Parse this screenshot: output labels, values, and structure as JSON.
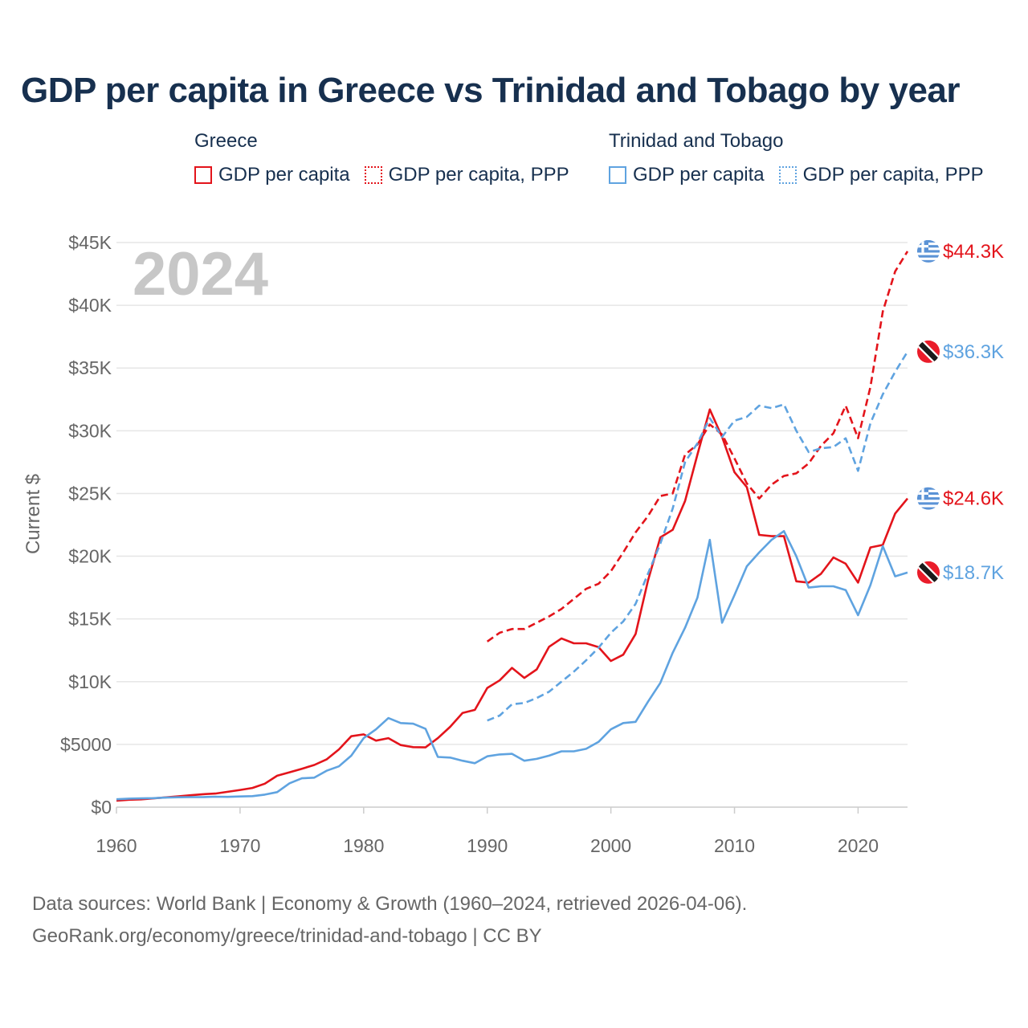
{
  "title": "GDP per capita in Greece vs Trinidad and Tobago by year",
  "legend": {
    "greece": {
      "country": "Greece",
      "nominal": "GDP per capita",
      "ppp": "GDP per capita, PPP"
    },
    "tt": {
      "country": "Trinidad and Tobago",
      "nominal": "GDP per capita",
      "ppp": "GDP per capita, PPP"
    }
  },
  "year_badge": "2024",
  "footer": {
    "line1": "Data sources: World Bank | Economy & Growth (1960–2024, retrieved 2026-04-06).",
    "line2": "GeoRank.org/economy/greece/trinidad-and-tobago | CC BY"
  },
  "colors": {
    "greece": "#e3141b",
    "tt": "#5fa3e0",
    "grid": "#e6e6e6",
    "axis": "#cccccc"
  },
  "chart_data": {
    "type": "line",
    "title": "GDP per capita in Greece vs Trinidad and Tobago by year",
    "xlabel": "",
    "ylabel": "Current $",
    "xlim": [
      1960,
      2024
    ],
    "ylim": [
      0,
      45000
    ],
    "x_ticks": [
      1960,
      1970,
      1980,
      1990,
      2000,
      2010,
      2020
    ],
    "x_tick_labels": [
      "1960",
      "1970",
      "1980",
      "1990",
      "2000",
      "2010",
      "2020"
    ],
    "y_ticks": [
      0,
      5000,
      10000,
      15000,
      20000,
      25000,
      30000,
      35000,
      40000,
      45000
    ],
    "y_tick_labels": [
      "$0",
      "$5000",
      "$10K",
      "$15K",
      "$20K",
      "$25K",
      "$30K",
      "$35K",
      "$40K",
      "$45K"
    ],
    "series": [
      {
        "name": "Greece GDP per capita",
        "country": "greece",
        "dash": false,
        "end_label": "$24.6K",
        "x": [
          1960,
          1961,
          1962,
          1963,
          1964,
          1965,
          1966,
          1967,
          1968,
          1969,
          1970,
          1971,
          1972,
          1973,
          1974,
          1975,
          1976,
          1977,
          1978,
          1979,
          1980,
          1981,
          1982,
          1983,
          1984,
          1985,
          1986,
          1987,
          1988,
          1989,
          1990,
          1991,
          1992,
          1993,
          1994,
          1995,
          1996,
          1997,
          1998,
          1999,
          2000,
          2001,
          2002,
          2003,
          2004,
          2005,
          2006,
          2007,
          2008,
          2009,
          2010,
          2011,
          2012,
          2013,
          2014,
          2015,
          2016,
          2017,
          2018,
          2019,
          2020,
          2021,
          2022,
          2023,
          2024
        ],
        "values": [
          520,
          590,
          620,
          700,
          780,
          860,
          950,
          1030,
          1080,
          1220,
          1370,
          1530,
          1870,
          2500,
          2780,
          3060,
          3360,
          3800,
          4600,
          5650,
          5800,
          5300,
          5500,
          4950,
          4780,
          4760,
          5500,
          6400,
          7500,
          7750,
          9500,
          10100,
          11100,
          10300,
          10980,
          12780,
          13450,
          13060,
          13060,
          12760,
          11650,
          12150,
          13800,
          18050,
          21500,
          22100,
          24400,
          28100,
          31700,
          29500,
          26700,
          25500,
          21700,
          21600,
          21600,
          18000,
          17900,
          18600,
          19900,
          19400,
          17900,
          20700,
          20900,
          23400,
          24600
        ]
      },
      {
        "name": "Greece GDP per capita, PPP",
        "country": "greece",
        "dash": true,
        "end_label": "$44.3K",
        "x": [
          1990,
          1991,
          1992,
          1993,
          1994,
          1995,
          1996,
          1997,
          1998,
          1999,
          2000,
          2001,
          2002,
          2003,
          2004,
          2005,
          2006,
          2007,
          2008,
          2009,
          2010,
          2011,
          2012,
          2013,
          2014,
          2015,
          2016,
          2017,
          2018,
          2019,
          2020,
          2021,
          2022,
          2023,
          2024
        ],
        "values": [
          13200,
          13900,
          14200,
          14200,
          14700,
          15200,
          15800,
          16600,
          17400,
          17800,
          18800,
          20300,
          21900,
          23200,
          24800,
          25000,
          28100,
          28900,
          30500,
          29700,
          27800,
          25800,
          24600,
          25700,
          26400,
          26600,
          27400,
          28800,
          29800,
          32000,
          29400,
          33500,
          39500,
          42700,
          44300
        ]
      },
      {
        "name": "Trinidad and Tobago GDP per capita",
        "country": "tt",
        "dash": false,
        "end_label": "$18.7K",
        "x": [
          1960,
          1961,
          1962,
          1963,
          1964,
          1965,
          1966,
          1967,
          1968,
          1969,
          1970,
          1971,
          1972,
          1973,
          1974,
          1975,
          1976,
          1977,
          1978,
          1979,
          1980,
          1981,
          1982,
          1983,
          1984,
          1985,
          1986,
          1987,
          1988,
          1989,
          1990,
          1991,
          1992,
          1993,
          1994,
          1995,
          1996,
          1997,
          1998,
          1999,
          2000,
          2001,
          2002,
          2003,
          2004,
          2005,
          2006,
          2007,
          2008,
          2009,
          2010,
          2011,
          2012,
          2013,
          2014,
          2015,
          2016,
          2017,
          2018,
          2019,
          2020,
          2021,
          2022,
          2023,
          2024
        ],
        "values": [
          630,
          680,
          700,
          720,
          760,
          790,
          800,
          800,
          830,
          820,
          850,
          880,
          1000,
          1200,
          1900,
          2300,
          2350,
          2900,
          3250,
          4100,
          5500,
          6200,
          7100,
          6700,
          6650,
          6250,
          4000,
          3950,
          3700,
          3500,
          4050,
          4200,
          4250,
          3700,
          3850,
          4100,
          4450,
          4450,
          4650,
          5200,
          6200,
          6700,
          6800,
          8400,
          9900,
          12300,
          14300,
          16700,
          21300,
          14700,
          16900,
          19200,
          20300,
          21300,
          22000,
          20000,
          17500,
          17600,
          17600,
          17300,
          15300,
          17700,
          20800,
          18400,
          18700
        ]
      },
      {
        "name": "Trinidad and Tobago GDP per capita, PPP",
        "country": "tt",
        "dash": true,
        "end_label": "$36.3K",
        "x": [
          1990,
          1991,
          1992,
          1993,
          1994,
          1995,
          1996,
          1997,
          1998,
          1999,
          2000,
          2001,
          2002,
          2003,
          2004,
          2005,
          2006,
          2007,
          2008,
          2009,
          2010,
          2011,
          2012,
          2013,
          2014,
          2015,
          2016,
          2017,
          2018,
          2019,
          2020,
          2021,
          2022,
          2023,
          2024
        ],
        "values": [
          6900,
          7300,
          8200,
          8300,
          8700,
          9200,
          10000,
          10800,
          11700,
          12700,
          13900,
          14800,
          16200,
          18600,
          21000,
          23800,
          27500,
          29000,
          31000,
          29500,
          30800,
          31100,
          32000,
          31800,
          32100,
          30000,
          28300,
          28600,
          28700,
          29400,
          26800,
          30600,
          32900,
          34700,
          36300
        ]
      }
    ]
  }
}
